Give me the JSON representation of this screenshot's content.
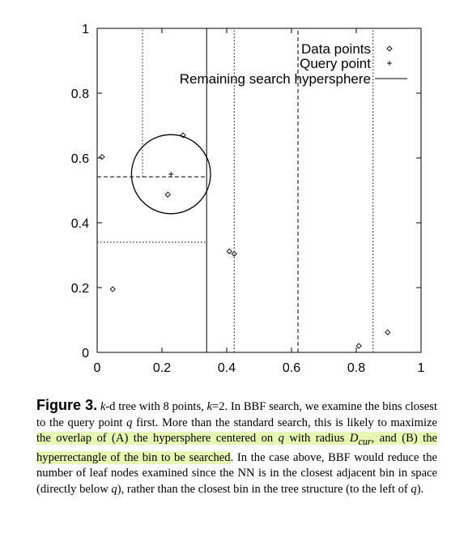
{
  "chart_data": {
    "type": "scatter",
    "xlim": [
      0,
      1
    ],
    "ylim": [
      0,
      1
    ],
    "x_ticks": [
      "0",
      "0.2",
      "0.4",
      "0.6",
      "0.8",
      "1"
    ],
    "y_ticks": [
      "0",
      "0.2",
      "0.4",
      "0.6",
      "0.8",
      "1"
    ],
    "legend_position": "top-right",
    "legend": [
      "Data points",
      "Query point",
      "Remaining search hypersphere"
    ],
    "data_points": [
      {
        "x": 0.015,
        "y": 0.603
      },
      {
        "x": 0.265,
        "y": 0.67
      },
      {
        "x": 0.218,
        "y": 0.487
      },
      {
        "x": 0.048,
        "y": 0.195
      },
      {
        "x": 0.408,
        "y": 0.312
      },
      {
        "x": 0.423,
        "y": 0.304
      },
      {
        "x": 0.808,
        "y": 0.02
      },
      {
        "x": 0.897,
        "y": 0.062
      }
    ],
    "query_point": {
      "x": 0.228,
      "y": 0.55
    },
    "hypersphere_radius": 0.122,
    "partitions": [
      {
        "orient": "v",
        "at": 0.338,
        "from": 0,
        "to": 1,
        "style": "solid"
      },
      {
        "orient": "h",
        "at": 0.34,
        "from": 0,
        "to": 0.338,
        "style": "dotted"
      },
      {
        "orient": "h",
        "at": 0.542,
        "from": 0,
        "to": 0.338,
        "style": "dashed"
      },
      {
        "orient": "v",
        "at": 0.14,
        "from": 0.542,
        "to": 1,
        "style": "dotted"
      },
      {
        "orient": "v",
        "at": 0.423,
        "from": 0,
        "to": 1,
        "style": "dotted"
      },
      {
        "orient": "v",
        "at": 0.62,
        "from": 0,
        "to": 1,
        "style": "dashed"
      },
      {
        "orient": "v",
        "at": 0.852,
        "from": 0,
        "to": 1,
        "style": "dotted"
      }
    ]
  },
  "caption": {
    "label": "Figure 3.",
    "kd": "k",
    "t1": "-d tree with 8 points, ",
    "k": "k",
    "t2": "=2. In BBF search, we examine the bins closest to the query point ",
    "q1": "q",
    "t3": " first. More than the standard search, this is likely to maximize ",
    "h1": "the overlap of (A) the hypersphere centered on ",
    "q2": "q",
    "h2": " with radius ",
    "dcur": "D",
    "sub": "cur",
    "h3": ", and (B) the hyperrectangle of the bin to be searched",
    "t4": ". In the case above, BBF would reduce the number of leaf nodes examined since the NN is in the closest adjacent bin in space (directly below ",
    "q3": "q",
    "t5": "), rather than the closest bin in the tree structure (to the left of ",
    "q4": "q",
    "t6": ")."
  }
}
